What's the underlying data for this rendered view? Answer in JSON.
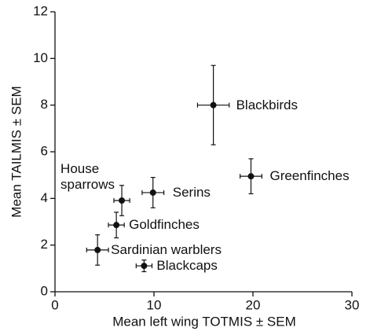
{
  "chart_data": {
    "type": "scatter",
    "x_label": "Mean left wing TOTMIS ± SEM",
    "y_label": "Mean TAILMIS ± SEM",
    "xlim": [
      0,
      30
    ],
    "xticks": [
      0,
      10,
      20,
      30
    ],
    "ylim": [
      0,
      12
    ],
    "yticks": [
      0,
      2,
      4,
      6,
      8,
      10,
      12
    ],
    "color": "#111111",
    "points": {
      "labels": [
        "Blackbirds",
        "Greenfinches",
        "Serins",
        "House\nsparrows",
        "Goldfinches",
        "Sardinian warblers",
        "Blackcaps"
      ],
      "x": [
        16,
        19.8,
        9.9,
        6.75,
        6.2,
        4.3,
        9.0
      ],
      "xerr": [
        1.6,
        1.1,
        1.1,
        0.8,
        0.8,
        1.1,
        0.8
      ],
      "values": [
        8,
        4.95,
        4.25,
        3.91,
        2.86,
        1.79,
        1.11
      ],
      "yerr": [
        1.7,
        0.75,
        0.65,
        0.65,
        0.55,
        0.65,
        0.25
      ]
    }
  }
}
